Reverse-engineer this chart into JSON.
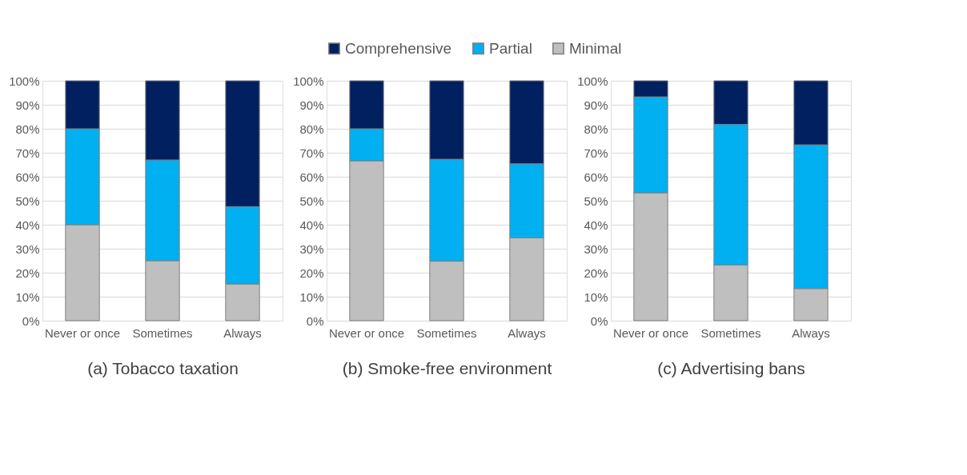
{
  "chart_data": [
    {
      "type": "bar",
      "stacked": true,
      "xlabel": "(a) Tobacco taxation",
      "categories": [
        "Never or once",
        "Sometimes",
        "Always"
      ],
      "ylim": [
        0,
        100
      ],
      "yticks": [
        {
          "value": 0,
          "label": "0%"
        },
        {
          "value": 10,
          "label": "10%"
        },
        {
          "value": 20,
          "label": "20%"
        },
        {
          "value": 30,
          "label": "30%"
        },
        {
          "value": 40,
          "label": "40%"
        },
        {
          "value": 50,
          "label": "50%"
        },
        {
          "value": 60,
          "label": "60%"
        },
        {
          "value": 70,
          "label": "70%"
        },
        {
          "value": 80,
          "label": "80%"
        },
        {
          "value": 90,
          "label": "90%"
        },
        {
          "value": 100,
          "label": "100%"
        }
      ],
      "grid": "y",
      "series": [
        {
          "color": "#bfbfbf",
          "values": [
            40,
            25,
            15.3
          ]
        },
        {
          "color": "#00b0f0",
          "values": [
            40,
            42,
            32.2
          ]
        },
        {
          "color": "#002060",
          "values": [
            20,
            33,
            52.5
          ]
        }
      ]
    },
    {
      "type": "bar",
      "stacked": true,
      "xlabel": "(b) Smoke-free environment",
      "categories": [
        "Never or once",
        "Sometimes",
        "Always"
      ],
      "ylim": [
        0,
        100
      ],
      "yticks": [
        {
          "value": 0,
          "label": "0%"
        },
        {
          "value": 10,
          "label": "10%"
        },
        {
          "value": 20,
          "label": "20%"
        },
        {
          "value": 30,
          "label": "30%"
        },
        {
          "value": 40,
          "label": "40%"
        },
        {
          "value": 50,
          "label": "50%"
        },
        {
          "value": 60,
          "label": "60%"
        },
        {
          "value": 70,
          "label": "70%"
        },
        {
          "value": 80,
          "label": "80%"
        },
        {
          "value": 90,
          "label": "90%"
        },
        {
          "value": 100,
          "label": "100%"
        }
      ],
      "grid": "y",
      "legend": "top",
      "series": [
        {
          "name": "Minimal",
          "color": "#bfbfbf",
          "values": [
            66.6,
            24.8,
            34.5
          ]
        },
        {
          "name": "Partial",
          "color": "#00b0f0",
          "values": [
            13.4,
            42.5,
            30.9
          ]
        },
        {
          "name": "Comprehensive",
          "color": "#002060",
          "values": [
            20,
            32.7,
            34.6
          ]
        }
      ]
    },
    {
      "type": "bar",
      "stacked": true,
      "xlabel": "(c) Advertising bans",
      "categories": [
        "Never or once",
        "Sometimes",
        "Always"
      ],
      "ylim": [
        0,
        100
      ],
      "yticks": [
        {
          "value": 0,
          "label": "0%"
        },
        {
          "value": 10,
          "label": "10%"
        },
        {
          "value": 20,
          "label": "20%"
        },
        {
          "value": 30,
          "label": "30%"
        },
        {
          "value": 40,
          "label": "40%"
        },
        {
          "value": 50,
          "label": "50%"
        },
        {
          "value": 60,
          "label": "60%"
        },
        {
          "value": 70,
          "label": "70%"
        },
        {
          "value": 80,
          "label": "80%"
        },
        {
          "value": 90,
          "label": "90%"
        },
        {
          "value": 100,
          "label": "100%"
        }
      ],
      "grid": "y",
      "series": [
        {
          "color": "#bfbfbf",
          "values": [
            53.3,
            23.2,
            13.4
          ]
        },
        {
          "color": "#00b0f0",
          "values": [
            40,
            58.6,
            59.9
          ]
        },
        {
          "color": "#002060",
          "values": [
            6.7,
            18.2,
            26.7
          ]
        }
      ]
    }
  ]
}
